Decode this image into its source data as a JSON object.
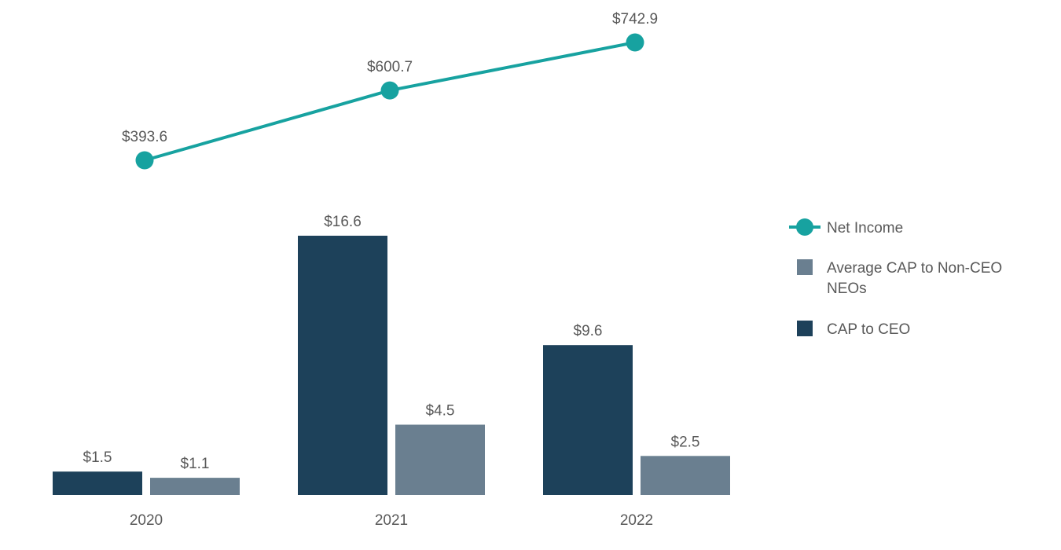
{
  "chart_data": {
    "type": "bar",
    "title": "",
    "categories": [
      "2020",
      "2021",
      "2022"
    ],
    "series": [
      {
        "name": "CAP to CEO",
        "values": [
          1.5,
          16.6,
          9.6
        ],
        "labels": [
          "$1.5",
          "$16.6",
          "$9.6"
        ],
        "color": "#1d415a"
      },
      {
        "name": "Average CAP to Non-CEO NEOs",
        "values": [
          1.1,
          4.5,
          2.5
        ],
        "labels": [
          "$1.1",
          "$4.5",
          "$2.5"
        ],
        "color": "#6a7f90"
      }
    ],
    "line_series": {
      "name": "Net Income",
      "values": [
        393.6,
        600.7,
        742.9
      ],
      "labels": [
        "$393.6",
        "$600.7",
        "$742.9"
      ],
      "color": "#17a2a0"
    },
    "legend": [
      {
        "name": "Net Income",
        "lines": [
          "Net Income"
        ],
        "marker": "line-circle",
        "color": "#17a2a0"
      },
      {
        "name": "Average CAP to Non-CEO NEOs",
        "lines": [
          "Average CAP to Non-CEO",
          "NEOs"
        ],
        "marker": "square",
        "color": "#6a7f90"
      },
      {
        "name": "CAP to CEO",
        "lines": [
          "CAP to CEO"
        ],
        "marker": "square",
        "color": "#1d415a"
      }
    ],
    "bar_ylim": [
      0,
      16.6
    ],
    "line_ylim": [
      393.6,
      742.9
    ],
    "legend_position": "right",
    "grid": false,
    "xlabel": "",
    "ylabel": ""
  }
}
